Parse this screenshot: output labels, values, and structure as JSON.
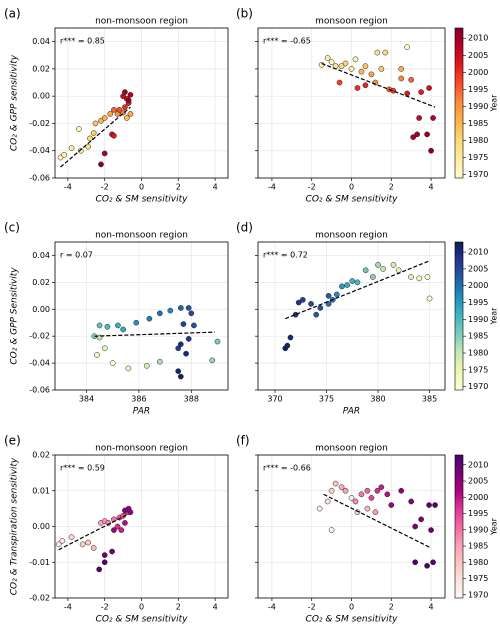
{
  "chart_data": [
    {
      "type": "scatter",
      "panel": "(a)",
      "title": "non-monsoon region",
      "annotation": "r*** = 0.85",
      "x_label": "CO₂ & SM sensitivity",
      "y_label": "CO₂ & GPP sensitivity",
      "xlim": [
        -4.7,
        4.7
      ],
      "ylim": [
        -0.06,
        0.05
      ],
      "xticks": [
        -4,
        -2,
        0,
        2,
        4
      ],
      "yticks": [
        -0.06,
        -0.04,
        -0.02,
        {
          "value": 0,
          "label": "0.00"
        },
        0.02,
        0.04
      ],
      "ytick_labels": true,
      "grid": true,
      "clim": [
        1969,
        2013
      ],
      "colormap": [
        "#ffffcc",
        "#ffeda0",
        "#fed976",
        "#feb24c",
        "#fd8d3c",
        "#fc4e2a",
        "#e31a1c",
        "#bd0026",
        "#800026"
      ],
      "x": [
        -4.4,
        -4.2,
        -3.8,
        -3.4,
        -3.3,
        -2.9,
        -2.8,
        -2.6,
        -2.5,
        -2.2,
        -2.0,
        -1.7,
        -1.3,
        -1.0,
        -0.8,
        -0.6,
        -1.5,
        -1.2,
        -0.9,
        -0.7,
        -0.8,
        -1.0,
        -0.6,
        -0.9,
        -0.7,
        -1.6,
        -2.0,
        -2.2,
        -1.5
      ],
      "values": [
        -0.045,
        -0.043,
        -0.038,
        -0.024,
        -0.04,
        -0.037,
        -0.031,
        -0.027,
        -0.02,
        -0.018,
        -0.016,
        -0.013,
        -0.013,
        -0.012,
        -0.016,
        -0.013,
        -0.01,
        -0.01,
        -0.008,
        -0.005,
        -0.002,
        0.0,
        0.001,
        0.003,
        -0.003,
        -0.028,
        -0.042,
        -0.05,
        -0.029
      ],
      "years": [
        1972,
        1973,
        1975,
        1971,
        1976,
        1978,
        1980,
        1982,
        1983,
        1985,
        1986,
        1988,
        1990,
        1992,
        1984,
        1987,
        1995,
        1997,
        2000,
        2002,
        2004,
        2006,
        2008,
        2010,
        2011,
        2005,
        2009,
        2012,
        2003
      ],
      "fit": {
        "x": [
          -4.4,
          -0.6
        ],
        "y": [
          -0.052,
          -0.008
        ]
      }
    },
    {
      "type": "scatter",
      "panel": "(b)",
      "title": "monsoon region",
      "annotation": "r*** = -0.65",
      "x_label": "CO₂ & SM sensitivity",
      "xlim": [
        -4.7,
        4.7
      ],
      "ylim": [
        -0.06,
        0.05
      ],
      "xticks": [
        -4,
        -2,
        0,
        2,
        4
      ],
      "yticks": [
        -0.06,
        -0.04,
        -0.02,
        0,
        0.02,
        0.04
      ],
      "ytick_labels": false,
      "grid": true,
      "clim": [
        1969,
        2013
      ],
      "colormap": [
        "#ffffcc",
        "#ffeda0",
        "#fed976",
        "#feb24c",
        "#fd8d3c",
        "#fc4e2a",
        "#e31a1c",
        "#bd0026",
        "#800026"
      ],
      "colorbar": {
        "label": "Year",
        "ticks": [
          1970,
          1975,
          1980,
          1985,
          1990,
          1995,
          2000,
          2005,
          2010
        ]
      },
      "x": [
        -1.5,
        -1.2,
        -1.0,
        -0.8,
        -0.5,
        -0.3,
        0.0,
        0.2,
        0.5,
        0.7,
        1.0,
        1.2,
        1.5,
        1.3,
        1.7,
        2.5,
        2.8,
        2.5,
        3.0,
        -0.6,
        0.3,
        0.7,
        1.9,
        2.1,
        2.8,
        3.5,
        3.9,
        3.4,
        4.1,
        3.1,
        3.3,
        3.8,
        4.0
      ],
      "values": [
        0.023,
        0.028,
        0.025,
        0.022,
        0.022,
        0.024,
        0.02,
        0.027,
        0.018,
        0.022,
        0.016,
        0.01,
        0.02,
        0.032,
        0.032,
        0.02,
        0.036,
        0.013,
        0.012,
        0.01,
        0.006,
        0.008,
        0.005,
        0.004,
        0.002,
        0.003,
        0.006,
        -0.016,
        -0.016,
        -0.03,
        -0.028,
        -0.028,
        -0.04
      ],
      "years": [
        1972,
        1974,
        1971,
        1976,
        1978,
        1980,
        1975,
        1973,
        1985,
        1983,
        1988,
        1990,
        1982,
        1977,
        1979,
        1986,
        1970,
        1992,
        1995,
        1998,
        2000,
        2001,
        1996,
        1999,
        2003,
        2002,
        2004,
        2006,
        2008,
        2009,
        2010,
        2011,
        2012
      ],
      "fit": {
        "x": [
          -1.5,
          4.2
        ],
        "y": [
          0.024,
          -0.008
        ]
      }
    },
    {
      "type": "scatter",
      "panel": "(c)",
      "title": "non-monsoon region",
      "annotation": "r = 0.07",
      "x_label": "PAR",
      "y_label": "CO₂ & GPP Sensitivity",
      "xlim": [
        382.8,
        389.4
      ],
      "ylim": [
        -0.06,
        0.05
      ],
      "xticks": [
        384,
        386,
        388
      ],
      "yticks": [
        -0.06,
        -0.04,
        -0.02,
        {
          "value": 0,
          "label": "0.00"
        },
        0.02,
        0.04
      ],
      "ytick_labels": true,
      "grid": true,
      "clim": [
        1969,
        2013
      ],
      "colormap": [
        "#ffffd9",
        "#edf8b1",
        "#c7e9b4",
        "#7fcdbb",
        "#41b6c4",
        "#1d91c0",
        "#225ea8",
        "#253494",
        "#081d58"
      ],
      "x": [
        384.3,
        384.5,
        384.8,
        385.2,
        385.4,
        384.5,
        384.7,
        384.4,
        385.0,
        385.6,
        386.3,
        386.8,
        385.9,
        386.4,
        386.8,
        387.2,
        387.6,
        387.9,
        388.0,
        387.7,
        388.1,
        387.9,
        387.6,
        387.5,
        387.8,
        387.5,
        387.6,
        388.8,
        389.0
      ],
      "values": [
        -0.02,
        -0.012,
        -0.013,
        -0.012,
        -0.015,
        -0.021,
        -0.029,
        -0.034,
        -0.04,
        -0.044,
        -0.042,
        -0.039,
        -0.01,
        -0.007,
        -0.003,
        -0.001,
        0.001,
        0.001,
        -0.003,
        -0.011,
        -0.012,
        -0.022,
        -0.026,
        -0.029,
        -0.033,
        -0.046,
        -0.05,
        -0.038,
        -0.024
      ],
      "years": [
        1985,
        1988,
        1990,
        1992,
        1993,
        1980,
        1976,
        1972,
        1970,
        1974,
        1978,
        1982,
        1996,
        1998,
        2000,
        1997,
        2001,
        2003,
        2005,
        2006,
        2004,
        2008,
        2009,
        2007,
        2010,
        2011,
        2012,
        1984,
        1986
      ],
      "fit": {
        "x": [
          384.3,
          388.9
        ],
        "y": [
          -0.02,
          -0.017
        ]
      }
    },
    {
      "type": "scatter",
      "panel": "(d)",
      "title": "monsoon region",
      "annotation": "r*** = 0.72",
      "x_label": "PAR",
      "xlim": [
        368.35,
        386.5
      ],
      "ylim": [
        -0.06,
        0.05
      ],
      "xticks": [
        370,
        375,
        380,
        385
      ],
      "yticks": [
        -0.06,
        -0.04,
        -0.02,
        0,
        0.02,
        0.04
      ],
      "ytick_labels": false,
      "grid": true,
      "clim": [
        1969,
        2013
      ],
      "colormap": [
        "#ffffd9",
        "#edf8b1",
        "#c7e9b4",
        "#7fcdbb",
        "#41b6c4",
        "#1d91c0",
        "#225ea8",
        "#253494",
        "#081d58"
      ],
      "colorbar": {
        "label": "Year",
        "ticks": [
          1970,
          1975,
          1980,
          1985,
          1990,
          1995,
          2000,
          2005,
          2010
        ]
      },
      "x": [
        371.0,
        371.2,
        371.5,
        372.0,
        372.3,
        372.7,
        373.5,
        374.0,
        374.4,
        375.2,
        375.6,
        375.2,
        376.0,
        376.5,
        377.0,
        377.5,
        378.0,
        378.8,
        379.5,
        380.0,
        380.5,
        381.5,
        382.0,
        383.2,
        384.0,
        384.8,
        385.0
      ],
      "values": [
        -0.029,
        -0.027,
        -0.021,
        -0.004,
        0.005,
        0.007,
        0.004,
        -0.004,
        0.001,
        0.004,
        0.007,
        0.01,
        0.011,
        0.017,
        0.018,
        0.021,
        0.02,
        0.029,
        0.024,
        0.033,
        0.03,
        0.033,
        0.029,
        0.024,
        0.023,
        0.024,
        0.008
      ],
      "years": [
        2012,
        2011,
        2010,
        2009,
        2008,
        2006,
        2005,
        2003,
        2004,
        2000,
        1999,
        2002,
        1997,
        1995,
        1993,
        1991,
        1990,
        1987,
        1985,
        1983,
        1980,
        1978,
        1975,
        1977,
        1973,
        1971,
        1970
      ],
      "fit": {
        "x": [
          371.0,
          385.0
        ],
        "y": [
          -0.007,
          0.036
        ]
      }
    },
    {
      "type": "scatter",
      "panel": "(e)",
      "title": "non-monsoon region",
      "annotation": "r*** = 0.59",
      "x_label": "CO₂ & SM sensitivity",
      "y_label": "CO₂ & Transpiration sensitivity",
      "xlim": [
        -4.7,
        4.7
      ],
      "ylim": [
        -0.02,
        0.02
      ],
      "xticks": [
        -4,
        -2,
        0,
        2,
        4
      ],
      "yticks": [
        -0.02,
        -0.01,
        {
          "value": 0,
          "label": "0.00"
        },
        0.01,
        0.02
      ],
      "ytick_labels": true,
      "grid": true,
      "clim": [
        1969,
        2013
      ],
      "colormap": [
        "#fff7f3",
        "#fde0dd",
        "#fcc5c0",
        "#fa9fb5",
        "#f768a1",
        "#dd3497",
        "#ae017e",
        "#7a0177",
        "#49006a"
      ],
      "x": [
        -4.5,
        -4.3,
        -3.8,
        -3.2,
        -2.9,
        -2.6,
        -2.2,
        -2.0,
        -1.8,
        -1.5,
        -1.2,
        -1.0,
        -0.8,
        -1.3,
        -1.1,
        -0.9,
        -0.7,
        -0.6,
        -0.9,
        -1.6,
        -2.0,
        -2.3,
        -2.0,
        -1.5
      ],
      "values": [
        -0.005,
        -0.004,
        -0.003,
        -0.005,
        -0.0045,
        -0.006,
        0.001,
        0.0015,
        0.001,
        0.002,
        0.0025,
        0.003,
        0.004,
        0.0,
        -0.001,
        0.001,
        0.005,
        0.004,
        0.0045,
        -0.007,
        -0.008,
        -0.012,
        -0.01,
        -0.001
      ],
      "years": [
        1972,
        1974,
        1976,
        1978,
        1980,
        1982,
        1985,
        1987,
        1988,
        1990,
        1992,
        1994,
        1996,
        1997,
        1999,
        2001,
        2003,
        2005,
        2007,
        2008,
        2009,
        2011,
        2012,
        2004
      ],
      "fit": {
        "x": [
          -4.5,
          -0.7
        ],
        "y": [
          -0.0065,
          0.0035
        ]
      }
    },
    {
      "type": "scatter",
      "panel": "(f)",
      "title": "monsoon region",
      "annotation": "r*** = -0.66",
      "x_label": "CO₂ & SM sensitivity",
      "xlim": [
        -4.7,
        4.7
      ],
      "ylim": [
        -0.02,
        0.02
      ],
      "xticks": [
        -4,
        -2,
        0,
        2,
        4
      ],
      "yticks": [
        -0.02,
        -0.01,
        0,
        0.01,
        0.02
      ],
      "ytick_labels": false,
      "grid": true,
      "clim": [
        1969,
        2013
      ],
      "colormap": [
        "#fff7f3",
        "#fde0dd",
        "#fcc5c0",
        "#fa9fb5",
        "#f768a1",
        "#dd3497",
        "#ae017e",
        "#7a0177",
        "#49006a"
      ],
      "colorbar": {
        "label": "Year",
        "ticks": [
          1970,
          1975,
          1980,
          1985,
          1990,
          1995,
          2000,
          2005,
          2010
        ]
      },
      "x": [
        -1.6,
        -1.2,
        -1.0,
        -0.8,
        -0.5,
        -0.3,
        0.0,
        0.2,
        0.5,
        0.8,
        1.0,
        1.3,
        1.5,
        1.8,
        -1.0,
        0.3,
        0.8,
        1.2,
        2.0,
        2.5,
        3.0,
        3.5,
        3.2,
        4.0,
        3.9,
        4.2,
        3.2,
        3.8,
        4.1
      ],
      "values": [
        0.005,
        0.007,
        0.01,
        0.012,
        0.011,
        0.01,
        0.008,
        0.007,
        0.009,
        0.01,
        0.008,
        0.01,
        0.011,
        0.009,
        -0.001,
        0.004,
        0.005,
        0.004,
        0.006,
        0.01,
        0.007,
        0.002,
        0.0,
        -0.001,
        0.006,
        0.006,
        -0.01,
        -0.011,
        -0.01
      ],
      "years": [
        1972,
        1975,
        1978,
        1980,
        1983,
        1985,
        1973,
        1987,
        1990,
        1992,
        1995,
        1997,
        1999,
        2001,
        1970,
        1976,
        1982,
        1986,
        2003,
        2005,
        2006,
        2007,
        2008,
        2009,
        2010,
        2011,
        2012,
        2012,
        2011
      ],
      "fit": {
        "x": [
          -1.4,
          4.0
        ],
        "y": [
          0.009,
          -0.006
        ]
      }
    }
  ]
}
